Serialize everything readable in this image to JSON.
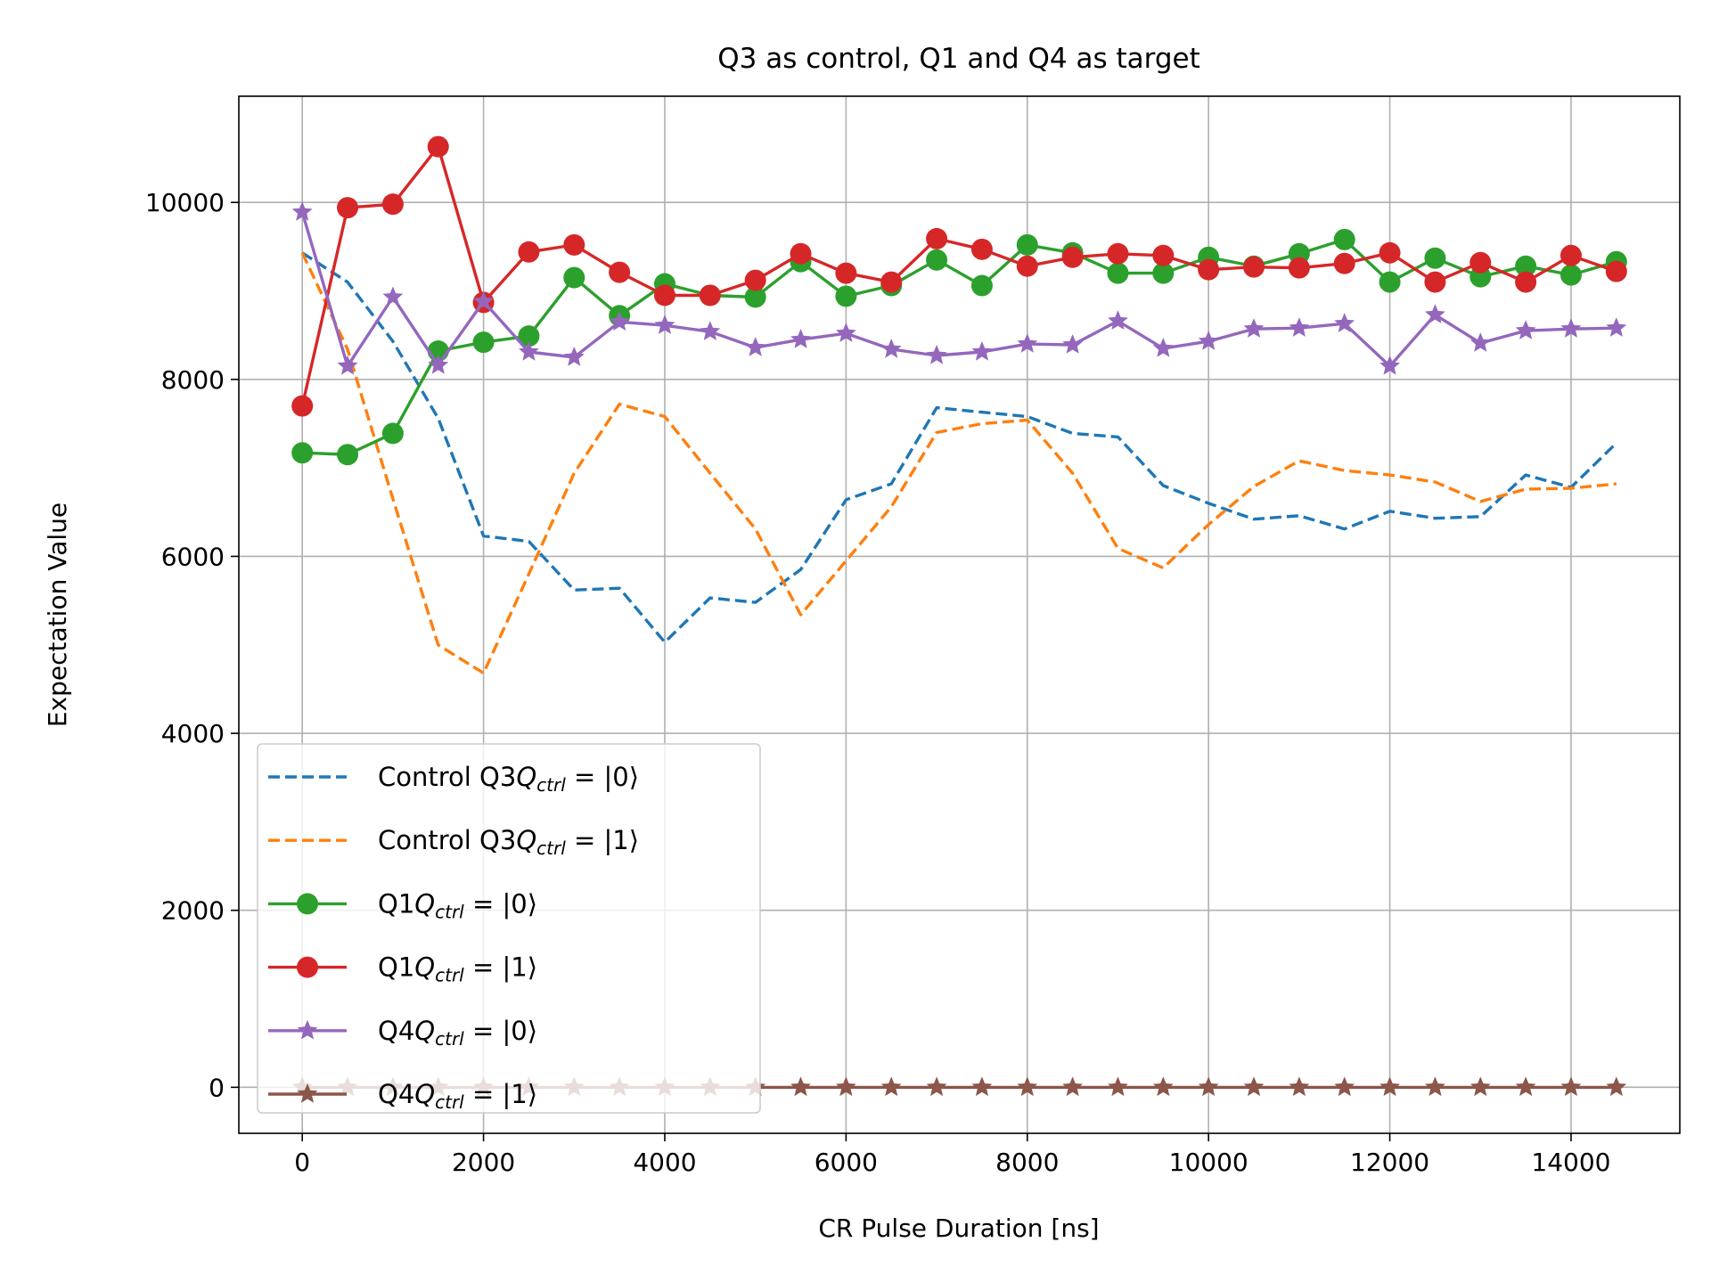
{
  "chart_data": {
    "type": "line",
    "title": "Q3 as control, Q1 and Q4 as target",
    "xlabel": "CR Pulse Duration [ns]",
    "ylabel": "Expectation Value",
    "xlim": [
      -700,
      15200
    ],
    "ylim": [
      -520,
      11200
    ],
    "x_ticks": [
      0,
      2000,
      4000,
      6000,
      8000,
      10000,
      12000,
      14000
    ],
    "y_ticks": [
      0,
      2000,
      4000,
      6000,
      8000,
      10000
    ],
    "grid": true,
    "legend_position": "lower-left",
    "x": [
      0,
      500,
      1000,
      1500,
      2000,
      2500,
      3000,
      3500,
      4000,
      4500,
      5000,
      5500,
      6000,
      6500,
      7000,
      7500,
      8000,
      8500,
      9000,
      9500,
      10000,
      10500,
      11000,
      11500,
      12000,
      12500,
      13000,
      13500,
      14000,
      14500
    ],
    "series": [
      {
        "legend_prefix": "Control Q3",
        "legend_state": "0",
        "color": "#1f77b4",
        "style": "dashed",
        "marker": "none",
        "values": [
          9430,
          9100,
          8430,
          7560,
          6230,
          6170,
          5620,
          5640,
          5030,
          5530,
          5480,
          5850,
          6640,
          6820,
          7680,
          7630,
          7580,
          7390,
          7350,
          6800,
          6600,
          6420,
          6460,
          6310,
          6510,
          6430,
          6450,
          6920,
          6780,
          7280
        ]
      },
      {
        "legend_prefix": "Control Q3",
        "legend_state": "1",
        "color": "#ff7f0e",
        "style": "dashed",
        "marker": "none",
        "values": [
          9430,
          8340,
          6650,
          5000,
          4680,
          5800,
          6940,
          7720,
          7580,
          6940,
          6310,
          5340,
          5950,
          6560,
          7400,
          7500,
          7540,
          6940,
          6090,
          5870,
          6360,
          6790,
          7080,
          6970,
          6920,
          6840,
          6620,
          6760,
          6770,
          6820
        ]
      },
      {
        "legend_prefix": "Q1",
        "legend_state": "0",
        "color": "#2ca02c",
        "style": "solid",
        "marker": "circle",
        "values": [
          7170,
          7150,
          7390,
          8320,
          8420,
          8490,
          9150,
          8720,
          9080,
          8950,
          8930,
          9330,
          8940,
          9060,
          9350,
          9060,
          9520,
          9430,
          9200,
          9200,
          9380,
          9280,
          9420,
          9580,
          9100,
          9370,
          9160,
          9280,
          9180,
          9330
        ]
      },
      {
        "legend_prefix": "Q1",
        "legend_state": "1",
        "color": "#d62728",
        "style": "solid",
        "marker": "circle",
        "values": [
          7700,
          9940,
          9980,
          10630,
          8870,
          9440,
          9520,
          9210,
          8950,
          8950,
          9120,
          9420,
          9200,
          9100,
          9590,
          9470,
          9280,
          9380,
          9420,
          9400,
          9240,
          9270,
          9260,
          9310,
          9430,
          9100,
          9320,
          9100,
          9400,
          9220
        ]
      },
      {
        "legend_prefix": "Q4",
        "legend_state": "0",
        "color": "#9467bd",
        "style": "solid",
        "marker": "star",
        "values": [
          9890,
          8150,
          8930,
          8160,
          8880,
          8310,
          8250,
          8650,
          8610,
          8540,
          8360,
          8450,
          8520,
          8340,
          8270,
          8310,
          8400,
          8390,
          8660,
          8350,
          8430,
          8570,
          8580,
          8630,
          8150,
          8730,
          8410,
          8550,
          8570,
          8580
        ]
      },
      {
        "legend_prefix": "Q4",
        "legend_state": "1",
        "color": "#8c564b",
        "style": "solid",
        "marker": "star",
        "values": [
          0,
          0,
          0,
          0,
          0,
          0,
          0,
          0,
          0,
          0,
          0,
          0,
          0,
          0,
          0,
          0,
          0,
          0,
          0,
          0,
          0,
          0,
          0,
          0,
          0,
          0,
          0,
          0,
          0,
          0
        ]
      }
    ]
  }
}
